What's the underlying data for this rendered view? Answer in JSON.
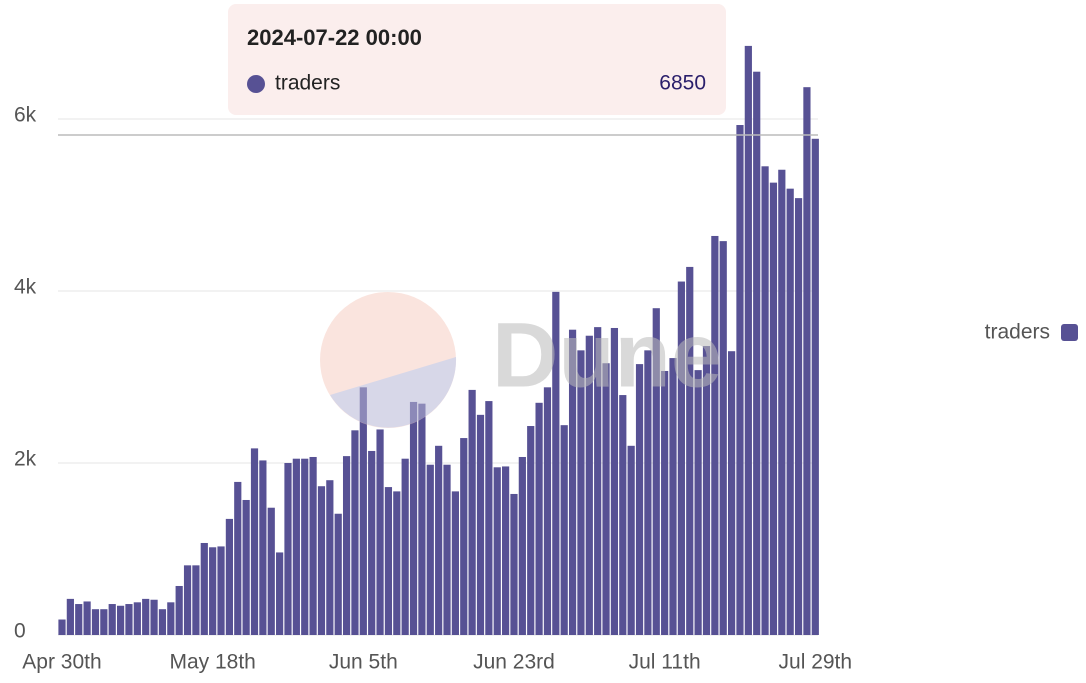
{
  "chart_data": {
    "type": "bar",
    "categories": [
      "Apr 30th",
      null,
      null,
      null,
      null,
      null,
      null,
      null,
      null,
      null,
      null,
      null,
      null,
      null,
      null,
      null,
      null,
      null,
      "May 18th",
      null,
      null,
      null,
      null,
      null,
      null,
      null,
      null,
      null,
      null,
      null,
      null,
      null,
      null,
      null,
      null,
      null,
      "Jun 5th",
      null,
      null,
      null,
      null,
      null,
      null,
      null,
      null,
      null,
      null,
      null,
      null,
      null,
      null,
      null,
      null,
      null,
      "Jun 23rd",
      null,
      null,
      null,
      null,
      null,
      null,
      null,
      null,
      null,
      null,
      null,
      null,
      null,
      null,
      null,
      null,
      null,
      "Jul 11th",
      null,
      null,
      null,
      null,
      null,
      null,
      null,
      null,
      null,
      null,
      null,
      null,
      null,
      null,
      null,
      null,
      null,
      "Jul 29th"
    ],
    "series": [
      {
        "name": "traders",
        "color": "#575194",
        "values": [
          180,
          420,
          360,
          390,
          300,
          300,
          360,
          340,
          360,
          380,
          420,
          410,
          300,
          380,
          570,
          810,
          810,
          1070,
          1020,
          1030,
          1350,
          1780,
          1570,
          2170,
          2030,
          1480,
          960,
          2000,
          2050,
          2050,
          2070,
          1730,
          1800,
          1410,
          2080,
          2380,
          2880,
          2140,
          2390,
          1720,
          1670,
          2050,
          2710,
          2690,
          1980,
          2200,
          1980,
          1670,
          2290,
          2850,
          2560,
          2720,
          1950,
          1960,
          1640,
          2070,
          2430,
          2700,
          2880,
          3990,
          2440,
          3550,
          3310,
          3480,
          3580,
          3160,
          3570,
          2790,
          2200,
          3150,
          3310,
          3800,
          3070,
          3220,
          4110,
          4280,
          3080,
          3360,
          4640,
          4580,
          3300,
          5930,
          6850,
          6550,
          5450,
          5260,
          5410,
          5190,
          5080,
          6370,
          5770
        ]
      }
    ],
    "ylim": [
      0,
      7400
    ],
    "yticks": [
      0,
      {
        "value": 2000,
        "label": "2k"
      },
      {
        "value": 4000,
        "label": "4k"
      },
      {
        "value": 6000,
        "label": "6k"
      }
    ],
    "grid": true,
    "legend": "right",
    "tooltip_title": "2024-07-22 00:00",
    "watermark": "Dune"
  }
}
